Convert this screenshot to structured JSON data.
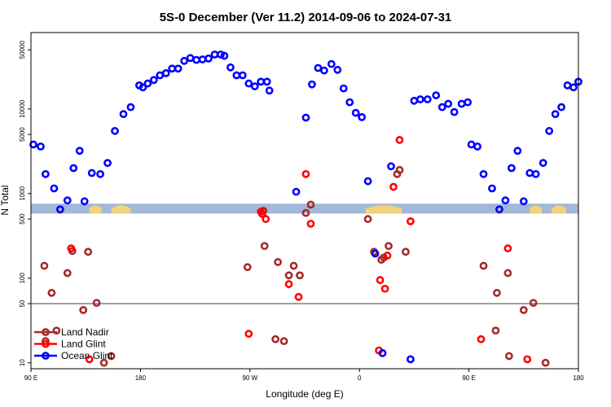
{
  "chart_data": {
    "type": "scatter",
    "title": "5S-0 December (Ver 11.2)   2014-09-06 to 2024-07-31",
    "xlabel": "Longitude (deg E)",
    "ylabel": "N Total",
    "x_ticks": [
      {
        "pos": 0,
        "label": "90 E"
      },
      {
        "pos": 90,
        "label": "180"
      },
      {
        "pos": 180,
        "label": "90 W"
      },
      {
        "pos": 270,
        "label": "0"
      },
      {
        "pos": 360,
        "label": "90 E"
      },
      {
        "pos": 450,
        "label": "180"
      }
    ],
    "y_ticks": [
      10,
      50,
      100,
      500,
      1000,
      5000,
      10000,
      50000
    ],
    "xlim": [
      0,
      450
    ],
    "ylim_log": [
      8.5,
      80000
    ],
    "reference_line": 50,
    "map_band": {
      "y_low": 580,
      "y_high": 760,
      "water_color": "#a2b8d8",
      "land_color": "#f2d37c"
    },
    "series": [
      {
        "name": "Land Nadir",
        "color": "#a52a2a",
        "points": [
          [
            11,
            140
          ],
          [
            12,
            18
          ],
          [
            17,
            67
          ],
          [
            21,
            24
          ],
          [
            30,
            115
          ],
          [
            34,
            210
          ],
          [
            43,
            42
          ],
          [
            47,
            205
          ],
          [
            54,
            51
          ],
          [
            60,
            10
          ],
          [
            66,
            12
          ],
          [
            178,
            135
          ],
          [
            191,
            625
          ],
          [
            192,
            240
          ],
          [
            201,
            19
          ],
          [
            203,
            155
          ],
          [
            208,
            18
          ],
          [
            212,
            108
          ],
          [
            216,
            140
          ],
          [
            221,
            108
          ],
          [
            226,
            590
          ],
          [
            230,
            740
          ],
          [
            277,
            500
          ],
          [
            282,
            205
          ],
          [
            288,
            165
          ],
          [
            290,
            175
          ],
          [
            294,
            240
          ],
          [
            301,
            1700
          ],
          [
            303,
            1900
          ],
          [
            308,
            205
          ],
          [
            372,
            140
          ],
          [
            382,
            24
          ],
          [
            383,
            67
          ],
          [
            392,
            115
          ],
          [
            393,
            12
          ],
          [
            405,
            42
          ],
          [
            413,
            51
          ],
          [
            423,
            10
          ]
        ]
      },
      {
        "name": "Land Glint",
        "color": "#ff0000",
        "points": [
          [
            33,
            225
          ],
          [
            48,
            11
          ],
          [
            179,
            22
          ],
          [
            189,
            610
          ],
          [
            190,
            575
          ],
          [
            193,
            500
          ],
          [
            212,
            85
          ],
          [
            220,
            60
          ],
          [
            226,
            1700
          ],
          [
            230,
            440
          ],
          [
            286,
            14
          ],
          [
            287,
            95
          ],
          [
            291,
            75
          ],
          [
            293,
            185
          ],
          [
            298,
            1200
          ],
          [
            303,
            4300
          ],
          [
            312,
            470
          ],
          [
            370,
            19
          ],
          [
            392,
            225
          ],
          [
            408,
            11
          ]
        ]
      },
      {
        "name": "Ocean Glint",
        "color": "#0000ff",
        "points": [
          [
            2,
            3800
          ],
          [
            8,
            3600
          ],
          [
            12,
            1700
          ],
          [
            19,
            1150
          ],
          [
            24,
            650
          ],
          [
            30,
            830
          ],
          [
            35,
            2000
          ],
          [
            40,
            3200
          ],
          [
            44,
            810
          ],
          [
            50,
            1750
          ],
          [
            57,
            1700
          ],
          [
            63,
            2300
          ],
          [
            69,
            5500
          ],
          [
            76,
            8700
          ],
          [
            82,
            10500
          ],
          [
            89,
            19000
          ],
          [
            92,
            18000
          ],
          [
            96,
            20000
          ],
          [
            101,
            22000
          ],
          [
            106,
            25000
          ],
          [
            111,
            26500
          ],
          [
            116,
            30000
          ],
          [
            121,
            30000
          ],
          [
            126,
            37000
          ],
          [
            131,
            40000
          ],
          [
            136,
            38000
          ],
          [
            141,
            38500
          ],
          [
            146,
            39500
          ],
          [
            151,
            44000
          ],
          [
            156,
            44000
          ],
          [
            159,
            42500
          ],
          [
            164,
            31000
          ],
          [
            169,
            25000
          ],
          [
            174,
            25000
          ],
          [
            179,
            20000
          ],
          [
            184,
            18500
          ],
          [
            189,
            21000
          ],
          [
            194,
            21000
          ],
          [
            196,
            16500
          ],
          [
            218,
            1050
          ],
          [
            226,
            7900
          ],
          [
            231,
            19500
          ],
          [
            236,
            30500
          ],
          [
            241,
            28500
          ],
          [
            247,
            34000
          ],
          [
            252,
            29000
          ],
          [
            257,
            17500
          ],
          [
            262,
            12000
          ],
          [
            267,
            9000
          ],
          [
            272,
            8000
          ],
          [
            277,
            1400
          ],
          [
            283,
            195
          ],
          [
            289,
            13
          ],
          [
            296,
            2100
          ],
          [
            312,
            11
          ],
          [
            315,
            12500
          ],
          [
            320,
            13000
          ],
          [
            326,
            13000
          ],
          [
            333,
            14500
          ],
          [
            338,
            10500
          ],
          [
            343,
            11500
          ],
          [
            348,
            9200
          ],
          [
            354,
            11500
          ],
          [
            359,
            12000
          ],
          [
            362,
            3800
          ],
          [
            367,
            3600
          ],
          [
            372,
            1700
          ],
          [
            379,
            1150
          ],
          [
            385,
            650
          ],
          [
            390,
            830
          ],
          [
            395,
            2000
          ],
          [
            400,
            3200
          ],
          [
            405,
            810
          ],
          [
            410,
            1750
          ],
          [
            415,
            1700
          ],
          [
            421,
            2300
          ],
          [
            426,
            5500
          ],
          [
            431,
            8700
          ],
          [
            436,
            10500
          ],
          [
            441,
            19000
          ],
          [
            446,
            18000
          ],
          [
            450,
            21000
          ]
        ]
      }
    ]
  }
}
